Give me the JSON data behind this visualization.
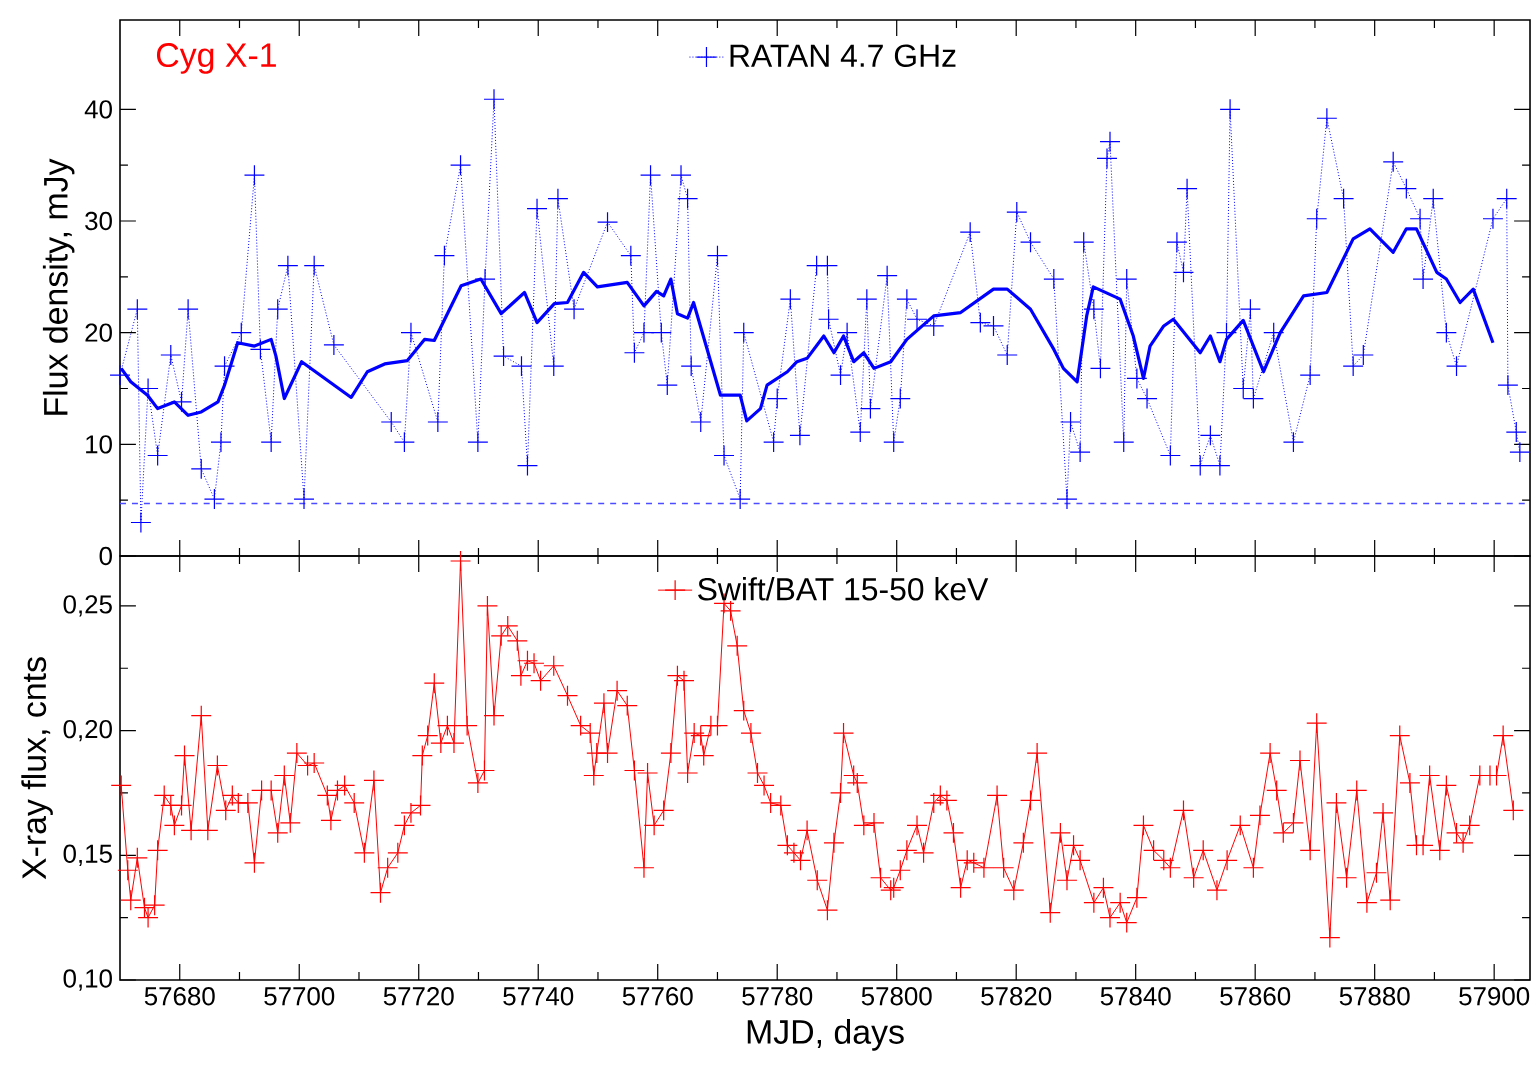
{
  "chart_data": [
    {
      "type": "line",
      "annotations": [
        "Cyg X-1"
      ],
      "ylabel": "Flux density, mJy",
      "xlim": [
        57670,
        57906
      ],
      "xticks": [
        57680,
        57700,
        57720,
        57740,
        57760,
        57780,
        57800,
        57820,
        57840,
        57860,
        57880,
        57900
      ],
      "ylim": [
        0,
        48
      ],
      "yticks": [
        0,
        10,
        20,
        30,
        40
      ],
      "tick_labels": "y",
      "legend": "top",
      "ref_lines": [
        {
          "axis": "y",
          "value": 4.7,
          "color": "#4d4dff",
          "line_style": "dashed"
        }
      ],
      "series": [
        {
          "name": "RATAN 4.7 GHz",
          "color": "#0000ff",
          "marker": "cross",
          "line_style": "dotted",
          "x": [
            57670.0,
            57672.9,
            57673.5,
            57674.7,
            57676.3,
            57678.5,
            57680.3,
            57681.4,
            57683.6,
            57685.8,
            57686.9,
            57687.5,
            57690.3,
            57692.5,
            57693.5,
            57695.3,
            57696.4,
            57698.1,
            57700.8,
            57702.5,
            57705.8,
            57715.4,
            57717.6,
            57718.7,
            57723.2,
            57724.3,
            57727.0,
            57729.9,
            57731.1,
            57732.6,
            57734.2,
            57737.2,
            57738.2,
            57739.8,
            57742.6,
            57743.3,
            57746.0,
            57751.6,
            57755.5,
            57756.1,
            57757.7,
            57758.8,
            57760.6,
            57761.6,
            57763.9,
            57765.0,
            57765.6,
            57767.2,
            57770.0,
            57771.1,
            57773.8,
            57774.4,
            57779.4,
            57780.0,
            57782.2,
            57783.8,
            57786.6,
            57788.4,
            57788.6,
            57790.6,
            57791.7,
            57793.9,
            57795.0,
            57795.6,
            57798.4,
            57799.5,
            57800.6,
            57801.7,
            57803.4,
            57806.2,
            57812.3,
            57814.0,
            57816.2,
            57818.5,
            57820.1,
            57822.4,
            57826.3,
            57828.5,
            57829.1,
            57830.7,
            57831.3,
            57833.0,
            57834.1,
            57835.2,
            57835.7,
            57838.0,
            57838.5,
            57840.2,
            57841.9,
            57845.8,
            57846.9,
            57848.0,
            57848.6,
            57850.8,
            57852.5,
            57854.1,
            57855.2,
            57855.8,
            57858.0,
            57859.2,
            57859.7,
            57863.1,
            57866.4,
            57869.2,
            57870.3,
            57872.0,
            57874.8,
            57876.4,
            57878.1,
            57883.1,
            57885.3,
            57887.6,
            57888.1,
            57889.8,
            57892.0,
            57893.7,
            57899.8,
            57902.1,
            57902.3,
            57903.7,
            57904.3
          ],
          "values": [
            16.2,
            22.1,
            3.0,
            15.0,
            9.0,
            18.0,
            13.8,
            22.1,
            7.8,
            5.1,
            10.2,
            17.0,
            20,
            34.1,
            18.5,
            10.2,
            22.1,
            26,
            5.1,
            26,
            18.9,
            12.0,
            10.2,
            20,
            12.0,
            26.9,
            35,
            10.2,
            24.8,
            40.9,
            17.9,
            17.0,
            8.1,
            31.1,
            17.0,
            32.0,
            22.1,
            29.9,
            26.9,
            18.2,
            20,
            34.1,
            20,
            15.3,
            34.1,
            32.0,
            17.0,
            12.0,
            26.9,
            9.0,
            5.1,
            20,
            10.2,
            14.1,
            23.0,
            10.8,
            26,
            26,
            21.2,
            16.2,
            20,
            11.1,
            23,
            13.2,
            25.1,
            10.2,
            14.1,
            23,
            21.2,
            20.6,
            29,
            20.9,
            20.6,
            18,
            30.8,
            28.1,
            24.8,
            5.1,
            12.0,
            9.3,
            28.1,
            22.1,
            16.8,
            35.6,
            37.1,
            10.2,
            24.8,
            15.9,
            14.1,
            9.0,
            28.1,
            25.4,
            32.9,
            8.1,
            10.8,
            8.1,
            20,
            40,
            15,
            22.1,
            14.1,
            20,
            10.2,
            16.2,
            30.2,
            39.2,
            32,
            17,
            18,
            35.3,
            32.9,
            30.2,
            24.8,
            32,
            20,
            17,
            30.2,
            32,
            15.3,
            11.1,
            9.3
          ]
        },
        {
          "color": "#0000ff",
          "marker": "none",
          "line_style": "solid",
          "x": [
            57670.2,
            57671.8,
            57674.6,
            57676.3,
            57679.1,
            57681.4,
            57683.6,
            57686.4,
            57687.5,
            57689.7,
            57692.5,
            57695.3,
            57696.1,
            57697.5,
            57700.4,
            57708.7,
            57711.4,
            57714.3,
            57718.1,
            57721.0,
            57722.6,
            57727.1,
            57730.4,
            57733.8,
            57737.7,
            57739.8,
            57742.7,
            57744.9,
            57747.6,
            57749.9,
            57754.9,
            57757.7,
            57759.8,
            57761.0,
            57762.2,
            57763.3,
            57765.0,
            57766.0,
            57770.5,
            57773.8,
            57774.9,
            57777.2,
            57778.3,
            57781.7,
            57783.3,
            57785.0,
            57787.8,
            57789.5,
            57791.1,
            57792.8,
            57794.5,
            57796.2,
            57799.0,
            57801.7,
            57806.2,
            57810.7,
            57816.2,
            57818.5,
            57822.4,
            57826.3,
            57827.9,
            57830.2,
            57831.8,
            57832.9,
            57837.4,
            57839.6,
            57841.3,
            57842.4,
            57844.7,
            57846.3,
            57850.8,
            57852.5,
            57854.1,
            57855.2,
            57858.0,
            57861.4,
            57864.2,
            57868.1,
            57872.0,
            57876.4,
            57879.2,
            57883.1,
            57885.3,
            57887.0,
            57890.4,
            57892.0,
            57894.3,
            57896.5,
            57899.8
          ],
          "values": [
            16.8,
            15.6,
            14.4,
            13.2,
            13.8,
            12.6,
            12.9,
            13.8,
            15.3,
            19.1,
            18.8,
            19.4,
            17.9,
            14.1,
            17.4,
            14.2,
            16.5,
            17.2,
            17.5,
            19.4,
            19.3,
            24.2,
            24.8,
            21.7,
            23.6,
            20.9,
            22.6,
            22.7,
            25.4,
            24.1,
            24.5,
            22.4,
            23.7,
            23.3,
            24.8,
            21.7,
            21.3,
            22.7,
            14.4,
            14.4,
            12.1,
            13.2,
            15.3,
            16.5,
            17.4,
            17.7,
            19.7,
            18.2,
            19.7,
            17.4,
            18.2,
            16.8,
            17.4,
            19.4,
            21.5,
            21.8,
            23.9,
            23.9,
            22.1,
            18.5,
            16.8,
            15.6,
            21.5,
            24.1,
            23,
            19.7,
            15.9,
            18.8,
            20.6,
            21.2,
            18.2,
            19.7,
            17.4,
            19.4,
            21.1,
            16.5,
            20,
            23.3,
            23.6,
            28.4,
            29.3,
            27.2,
            29.3,
            29.3,
            25.4,
            24.8,
            22.7,
            23.9,
            19.1
          ]
        }
      ]
    },
    {
      "type": "line",
      "ylabel": "X-ray flux, cnts",
      "xlabel": "MJD, days",
      "xlim": [
        57670,
        57906
      ],
      "xticks": [
        57680,
        57700,
        57720,
        57740,
        57760,
        57780,
        57800,
        57820,
        57840,
        57860,
        57880,
        57900
      ],
      "ylim": [
        0.1,
        0.27
      ],
      "yticks": [
        {
          "value": 0.1,
          "label": "0,10"
        },
        {
          "value": 0.15,
          "label": "0,15"
        },
        {
          "value": 0.2,
          "label": "0,20"
        },
        {
          "value": 0.25,
          "label": "0,25"
        }
      ],
      "legend": "top",
      "series": [
        {
          "name": "Swift/BAT 15-50 keV",
          "color": "#ff0000",
          "marker": "cross",
          "line_style": "solid",
          "x": [
            57670.2,
            57671.3,
            57671.8,
            57672.9,
            57674.1,
            57674.7,
            57675.8,
            57676.3,
            57677.4,
            57678.5,
            57679.1,
            57680.3,
            57680.8,
            57681.9,
            57683.6,
            57684.7,
            57686.3,
            57687.7,
            57688.8,
            57689.8,
            57691.4,
            57692.5,
            57693.7,
            57695.3,
            57696.4,
            57697.5,
            57698.5,
            57699.6,
            57701.4,
            57702.5,
            57704.7,
            57705.3,
            57706.4,
            57707.6,
            57709.2,
            57710.9,
            57712.5,
            57713.6,
            57714.8,
            57716.5,
            57717.6,
            57718.7,
            57720.3,
            57720.6,
            57721.5,
            57722.6,
            57723.7,
            57724.8,
            57725.9,
            57727.0,
            57728.1,
            57729.9,
            57731.0,
            57731.5,
            57732.6,
            57733.8,
            57734.9,
            57736.5,
            57737.1,
            57738.2,
            57739.3,
            57740.4,
            57742.6,
            57744.9,
            57747.1,
            57748.7,
            57749.3,
            57749.8,
            57751.0,
            57751.6,
            57753.2,
            57754.9,
            57756.1,
            57757.7,
            57758.3,
            57759.4,
            57761.0,
            57762.2,
            57763.3,
            57764.4,
            57765.0,
            57766.1,
            57767.2,
            57767.7,
            57768.9,
            57770.0,
            57771.1,
            57772.2,
            57773.3,
            57774.4,
            57775.6,
            57776.7,
            57777.8,
            57778.9,
            57780.6,
            57781.7,
            57782.8,
            57783.9,
            57785.0,
            57786.7,
            57788.4,
            57789.5,
            57790.6,
            57791.1,
            57792.8,
            57793.4,
            57794.5,
            57796.2,
            57797.3,
            57799.0,
            57799.5,
            57800.6,
            57801.7,
            57803.4,
            57804.5,
            57806.2,
            57807.3,
            57808.4,
            57809.5,
            57810.7,
            57811.8,
            57812.9,
            57814.6,
            57816.8,
            57817.9,
            57819.6,
            57821.2,
            57822.4,
            57823.5,
            57825.7,
            57827.4,
            57828.5,
            57829.6,
            57830.7,
            57833.0,
            57834.6,
            57835.7,
            57837.4,
            57838.5,
            57840.2,
            57841.3,
            57843.0,
            57844.7,
            57845.8,
            57848.0,
            57849.7,
            57851.3,
            57853.6,
            57855.3,
            57857.5,
            57859.7,
            57860.8,
            57862.5,
            57863.6,
            57864.7,
            57866.4,
            57867.5,
            57869.2,
            57870.3,
            57872.5,
            57873.6,
            57875.3,
            57877.0,
            57878.7,
            57880.3,
            57881.4,
            57882.6,
            57884.2,
            57885.9,
            57887.0,
            57888.1,
            57889.2,
            57890.9,
            57892.0,
            57893.7,
            57894.8,
            57895.9,
            57897.6,
            57899.3,
            57900.4,
            57901.5,
            57903.2
          ],
          "values": [
            0.178,
            0.144,
            0.132,
            0.149,
            0.129,
            0.125,
            0.13,
            0.152,
            0.174,
            0.17,
            0.162,
            0.17,
            0.19,
            0.16,
            0.206,
            0.16,
            0.186,
            0.168,
            0.174,
            0.171,
            0.171,
            0.147,
            0.176,
            0.176,
            0.159,
            0.182,
            0.163,
            0.191,
            0.186,
            0.187,
            0.174,
            0.164,
            0.176,
            0.178,
            0.171,
            0.151,
            0.18,
            0.135,
            0.145,
            0.151,
            0.162,
            0.167,
            0.17,
            0.19,
            0.198,
            0.219,
            0.195,
            0.202,
            0.195,
            0.268,
            0.202,
            0.179,
            0.184,
            0.25,
            0.206,
            0.238,
            0.242,
            0.236,
            0.222,
            0.228,
            0.227,
            0.22,
            0.226,
            0.214,
            0.202,
            0.199,
            0.182,
            0.191,
            0.211,
            0.191,
            0.216,
            0.21,
            0.184,
            0.145,
            0.183,
            0.162,
            0.168,
            0.191,
            0.222,
            0.22,
            0.183,
            0.199,
            0.198,
            0.19,
            0.202,
            0.202,
            0.251,
            0.248,
            0.234,
            0.208,
            0.199,
            0.183,
            0.178,
            0.171,
            0.17,
            0.154,
            0.151,
            0.148,
            0.16,
            0.14,
            0.128,
            0.155,
            0.175,
            0.199,
            0.182,
            0.179,
            0.162,
            0.163,
            0.141,
            0.136,
            0.137,
            0.144,
            0.152,
            0.162,
            0.151,
            0.171,
            0.174,
            0.172,
            0.159,
            0.137,
            0.148,
            0.147,
            0.145,
            0.174,
            0.145,
            0.136,
            0.155,
            0.172,
            0.191,
            0.127,
            0.159,
            0.14,
            0.154,
            0.148,
            0.131,
            0.137,
            0.125,
            0.131,
            0.123,
            0.133,
            0.162,
            0.152,
            0.148,
            0.145,
            0.168,
            0.141,
            0.152,
            0.136,
            0.148,
            0.162,
            0.145,
            0.166,
            0.191,
            0.176,
            0.159,
            0.163,
            0.188,
            0.152,
            0.203,
            0.117,
            0.171,
            0.141,
            0.176,
            0.131,
            0.143,
            0.167,
            0.132,
            0.198,
            0.179,
            0.154,
            0.154,
            0.182,
            0.152,
            0.178,
            0.159,
            0.155,
            0.162,
            0.182,
            0.182,
            0.182,
            0.198,
            0.168
          ]
        }
      ]
    }
  ]
}
